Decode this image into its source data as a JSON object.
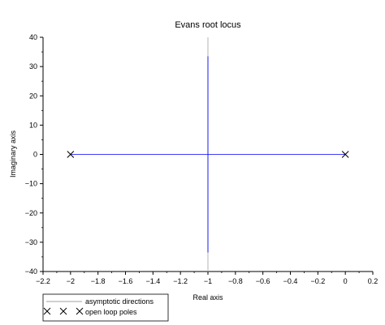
{
  "chart_data": {
    "type": "line",
    "title": "Evans root locus",
    "xlabel": "Real axis",
    "ylabel": "Imaginary axis",
    "xlim": [
      -2.2,
      0.2
    ],
    "ylim": [
      -40,
      40
    ],
    "x_ticks": [
      -2.2,
      -2,
      -1.8,
      -1.6,
      -1.4,
      -1.2,
      -1,
      -0.8,
      -0.6,
      -0.4,
      -0.2,
      0,
      0.2
    ],
    "x_tick_labels": [
      "−2.2",
      "−2",
      "−1.8",
      "−1.6",
      "−1.4",
      "−1.2",
      "−1",
      "−0.8",
      "−0.6",
      "−0.4",
      "−0.2",
      "0",
      "0.2"
    ],
    "y_ticks": [
      40,
      30,
      20,
      10,
      0,
      -10,
      -20,
      -30,
      -40
    ],
    "y_tick_labels": [
      "40",
      "30",
      "20",
      "10",
      "0",
      "−10",
      "−20",
      "−30",
      "−40"
    ],
    "grid": false,
    "series": [
      {
        "name": "",
        "kind": "locus-branch",
        "color": "#0000ff",
        "points": [
          [
            -2,
            0
          ],
          [
            -1,
            0
          ],
          [
            -1,
            33.5
          ]
        ]
      },
      {
        "name": "",
        "kind": "locus-branch",
        "color": "#0000ff",
        "points": [
          [
            0,
            0
          ],
          [
            -1,
            0
          ],
          [
            -1,
            -33.5
          ]
        ]
      },
      {
        "name": "asymptotic directions",
        "kind": "asymptote",
        "color": "#c0c0c0",
        "points": [
          [
            -1,
            -40
          ],
          [
            -1,
            40
          ]
        ]
      }
    ],
    "open_loop_poles": {
      "name": "open loop poles",
      "marker": "x",
      "points": [
        [
          -2,
          0
        ],
        [
          0,
          0
        ]
      ]
    },
    "legend": {
      "position": "bottom-left",
      "entries": [
        "asymptotic directions",
        "open loop poles"
      ]
    },
    "colors": {
      "locus": "#0000ff",
      "asymptote": "#c0c0c0",
      "axes": "#000000"
    }
  }
}
